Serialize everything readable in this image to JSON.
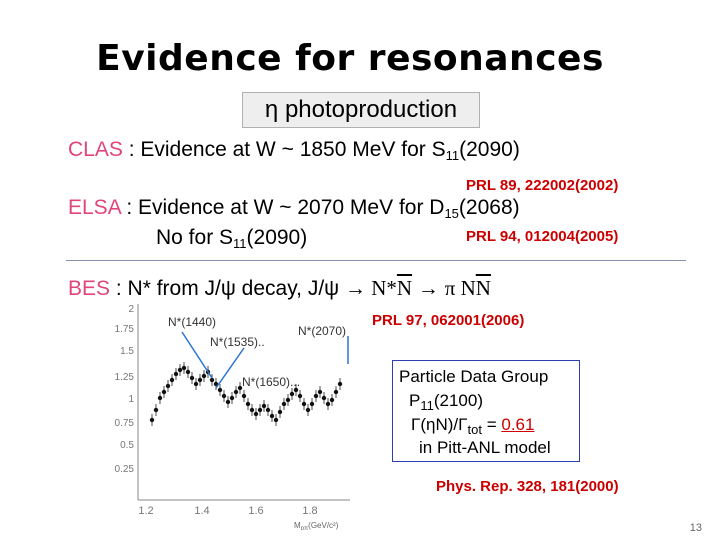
{
  "title": "Evidence for resonances",
  "eta_heading": "η photoproduction",
  "clas": {
    "prefix": "CLAS",
    "text": " : Evidence at W ~ 1850 MeV for S",
    "sub": "11",
    "tail": "(2090)",
    "ref": "PRL 89, 222002(2002)"
  },
  "elsa": {
    "prefix": "ELSA",
    "text": " : Evidence at W ~ 2070 MeV for D",
    "sub": "15",
    "tail": "(2068)",
    "line2_text": "No for S",
    "line2_sub": "11",
    "line2_tail": "(2090)",
    "ref": "PRL 94, 012004(2005)"
  },
  "bes": {
    "prefix": "BES",
    "text": "  : N* from J/ψ decay, J/ψ ",
    "arrow1": "→",
    "nstar": " N*",
    "nbar": "N",
    "arrow2": " → ",
    "pi": "π N",
    "nbar2": "N",
    "ref": "PRL 97, 062001(2006)"
  },
  "plot": {
    "label_1440": "N*(1440)",
    "label_1535": "N*(1535)..",
    "label_2070": "N*(2070)",
    "label_1650": "N*(1650)...",
    "xaxis_label": "M",
    "xaxis_sub": "pπ",
    "xaxis_unit": "(GeV/c²)",
    "x_ticks": [
      "1.2",
      "1.4",
      "1.6",
      "1.8"
    ],
    "y_ticks": [
      "2",
      "1.75",
      "1.5",
      "1.25",
      "1",
      "0.75",
      "0.5",
      "0.25"
    ]
  },
  "pdg": {
    "line1": "Particle Data Group",
    "line2_a": "P",
    "line2_sub": "11",
    "line2_b": "(2100)",
    "line3_a": "Γ(ηN)/Γ",
    "line3_sub": "tot",
    "line3_b": " = ",
    "line3_value": "0.61",
    "line4": "in Pitt-ANL model"
  },
  "pdg_ref": "Phys. Rep. 328, 181(2000)",
  "page_number": "13",
  "colors": {
    "accent_pink": "#e0457c",
    "reference_red": "#cc0000",
    "box_blue": "#2c3fb0"
  }
}
